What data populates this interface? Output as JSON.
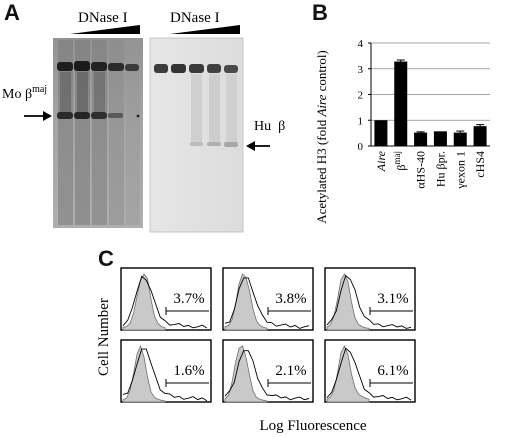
{
  "panels": {
    "a": "A",
    "b": "B",
    "c": "C"
  },
  "gel": {
    "left_treatment": "DNase I",
    "right_treatment": "DNase I",
    "left_band_label_main": "Mo β",
    "left_band_label_sup": "maj",
    "right_band_label": "Hu  β"
  },
  "chart_data": {
    "type": "bar",
    "categories": [
      "Aire",
      "βmaj",
      "αHS-40",
      "Hu βpr.",
      "γexon 1",
      "cHS4"
    ],
    "category_parts": [
      {
        "main": "Aire",
        "sup": "",
        "italic": true
      },
      {
        "main": "β",
        "sup": "maj",
        "italic": false
      },
      {
        "main": "αHS-40",
        "sup": "",
        "italic": false
      },
      {
        "main": "Hu βpr.",
        "sup": "",
        "italic": false
      },
      {
        "main": "γexon 1",
        "sup": "",
        "italic": false
      },
      {
        "main": "cHS4",
        "sup": "",
        "italic": false
      }
    ],
    "values": [
      1.0,
      3.28,
      0.52,
      0.57,
      0.52,
      0.77
    ],
    "errors": [
      0,
      0.06,
      0.03,
      0,
      0.06,
      0.06
    ],
    "ylabel_pre": "Acetylated H3 (fold ",
    "ylabel_italic": "Aire",
    "ylabel_post": " control)",
    "ylim": [
      0,
      4
    ],
    "yticks": [
      "0",
      "1",
      "2",
      "3",
      "4"
    ],
    "grid": true,
    "bar_color": "#000000"
  },
  "flow": {
    "percents": [
      "3.7%",
      "3.8%",
      "3.1%",
      "1.6%",
      "2.1%",
      "6.1%"
    ],
    "ylabel": "Cell Number",
    "xlabel": "Log Fluorescence"
  }
}
